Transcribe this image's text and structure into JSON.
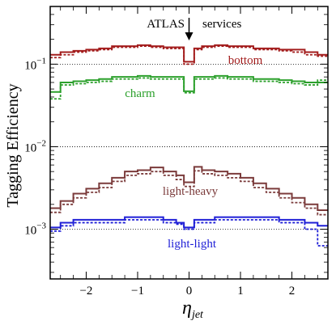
{
  "chart_data": {
    "type": "line",
    "ylabel": "Tagging Efficiency",
    "xlabel": "η",
    "xlabel_sub": "jet",
    "xlim": [
      -2.7,
      2.7
    ],
    "ylim": [
      0.00025,
      0.5
    ],
    "y_scale": "log",
    "x_ticks": [
      -2,
      -1,
      0,
      1,
      2
    ],
    "x_tick_labels": [
      "−2",
      "−1",
      "0",
      "1",
      "2"
    ],
    "y_ticks": [
      0.001,
      0.01,
      0.1
    ],
    "y_tick_labels": [
      {
        "base": "10",
        "exp": "−3"
      },
      {
        "base": "10",
        "exp": "−2"
      },
      {
        "base": "10",
        "exp": "−1"
      }
    ],
    "reference_lines": [
      0.001,
      0.01,
      0.1
    ],
    "annotation": {
      "text": "ATLAS",
      "arrow_label": "services",
      "x": 0
    },
    "bin_edges": [
      -2.7,
      -2.5,
      -2.25,
      -2.0,
      -1.75,
      -1.5,
      -1.25,
      -1.0,
      -0.75,
      -0.5,
      -0.25,
      -0.1,
      0.1,
      0.25,
      0.5,
      0.75,
      1.0,
      1.25,
      1.5,
      1.75,
      2.0,
      2.25,
      2.5,
      2.7
    ],
    "series": [
      {
        "name": "bottom",
        "color": "#a31d1d",
        "solid": [
          0.13,
          0.14,
          0.145,
          0.15,
          0.155,
          0.165,
          0.165,
          0.17,
          0.165,
          0.16,
          0.16,
          0.107,
          0.155,
          0.165,
          0.17,
          0.165,
          0.165,
          0.155,
          0.155,
          0.15,
          0.15,
          0.14,
          0.13
        ],
        "dotted": [
          0.12,
          0.13,
          0.14,
          0.145,
          0.15,
          0.16,
          0.16,
          0.165,
          0.16,
          0.155,
          0.155,
          0.1,
          0.15,
          0.16,
          0.165,
          0.16,
          0.16,
          0.15,
          0.15,
          0.145,
          0.14,
          0.13,
          0.125
        ]
      },
      {
        "name": "charm",
        "color": "#2ca02c",
        "solid": [
          0.046,
          0.06,
          0.062,
          0.064,
          0.066,
          0.07,
          0.07,
          0.072,
          0.07,
          0.07,
          0.07,
          0.047,
          0.07,
          0.07,
          0.072,
          0.07,
          0.07,
          0.066,
          0.066,
          0.064,
          0.062,
          0.06,
          0.06
        ],
        "dotted": [
          0.038,
          0.056,
          0.058,
          0.06,
          0.062,
          0.066,
          0.066,
          0.068,
          0.066,
          0.066,
          0.066,
          0.045,
          0.066,
          0.066,
          0.068,
          0.066,
          0.066,
          0.062,
          0.062,
          0.06,
          0.058,
          0.056,
          0.064
        ]
      },
      {
        "name": "light-heavy",
        "color": "#7b3b3b",
        "solid": [
          0.0018,
          0.0022,
          0.0027,
          0.0031,
          0.0036,
          0.0042,
          0.005,
          0.0052,
          0.0056,
          0.005,
          0.0045,
          0.0037,
          0.0057,
          0.0052,
          0.005,
          0.0047,
          0.0042,
          0.0036,
          0.0031,
          0.0027,
          0.0024,
          0.002,
          0.0017
        ],
        "dotted": [
          0.0016,
          0.002,
          0.0024,
          0.0028,
          0.0032,
          0.0038,
          0.0045,
          0.0047,
          0.005,
          0.0045,
          0.004,
          0.0033,
          0.0051,
          0.0047,
          0.0045,
          0.0042,
          0.0038,
          0.0032,
          0.0028,
          0.0024,
          0.0021,
          0.0018,
          0.0015
        ]
      },
      {
        "name": "light-light",
        "color": "#1f1fd6",
        "solid": [
          0.00105,
          0.0012,
          0.0013,
          0.0013,
          0.0013,
          0.0013,
          0.0014,
          0.0014,
          0.0014,
          0.0013,
          0.0012,
          0.00105,
          0.0013,
          0.0013,
          0.0014,
          0.0014,
          0.0014,
          0.0014,
          0.0014,
          0.0013,
          0.0013,
          0.0012,
          0.0011
        ],
        "dotted": [
          0.00095,
          0.0011,
          0.0012,
          0.0012,
          0.0012,
          0.0012,
          0.0013,
          0.0013,
          0.0013,
          0.0012,
          0.00115,
          0.001,
          0.0012,
          0.0012,
          0.0013,
          0.0013,
          0.0013,
          0.0013,
          0.0013,
          0.0012,
          0.0012,
          0.001,
          0.00063
        ]
      }
    ],
    "grid": false
  }
}
